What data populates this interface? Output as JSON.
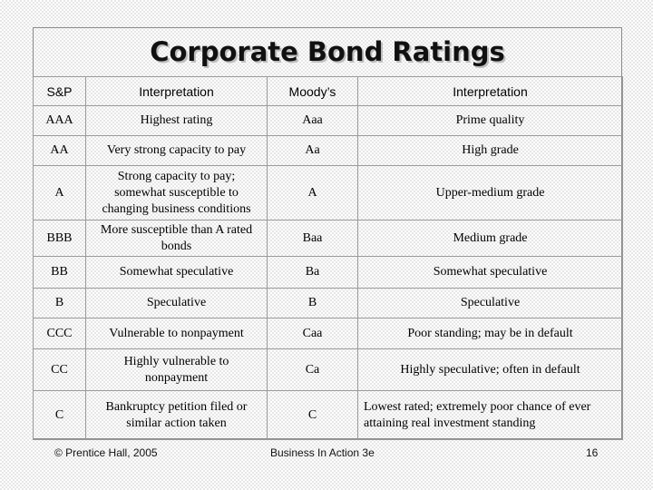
{
  "title": "Corporate Bond Ratings",
  "table": {
    "headers": [
      "S&P",
      "Interpretation",
      "Moody’s",
      "Interpretation"
    ],
    "rows": [
      [
        "AAA",
        "Highest rating",
        "Aaa",
        "Prime quality"
      ],
      [
        "AA",
        "Very strong capacity to pay",
        "Aa",
        "High grade"
      ],
      [
        "A",
        "Strong capacity to pay; somewhat susceptible to changing business conditions",
        "A",
        "Upper-medium grade"
      ],
      [
        "BBB",
        "More susceptible than A rated bonds",
        "Baa",
        "Medium grade"
      ],
      [
        "BB",
        "Somewhat speculative",
        "Ba",
        "Somewhat speculative"
      ],
      [
        "B",
        "Speculative",
        "B",
        "Speculative"
      ],
      [
        "CCC",
        "Vulnerable to nonpayment",
        "Caa",
        "Poor standing; may be in default"
      ],
      [
        "CC",
        "Highly vulnerable to nonpayment",
        "Ca",
        "Highly speculative; often in default"
      ],
      [
        "C",
        "Bankruptcy petition filed or similar action taken",
        "C",
        "Lowest rated; extremely poor chance of ever attaining real investment standing"
      ]
    ]
  },
  "footer": {
    "copyright": "© Prentice Hall, 2005",
    "course": "Business In Action 3e",
    "page_number": "16"
  }
}
